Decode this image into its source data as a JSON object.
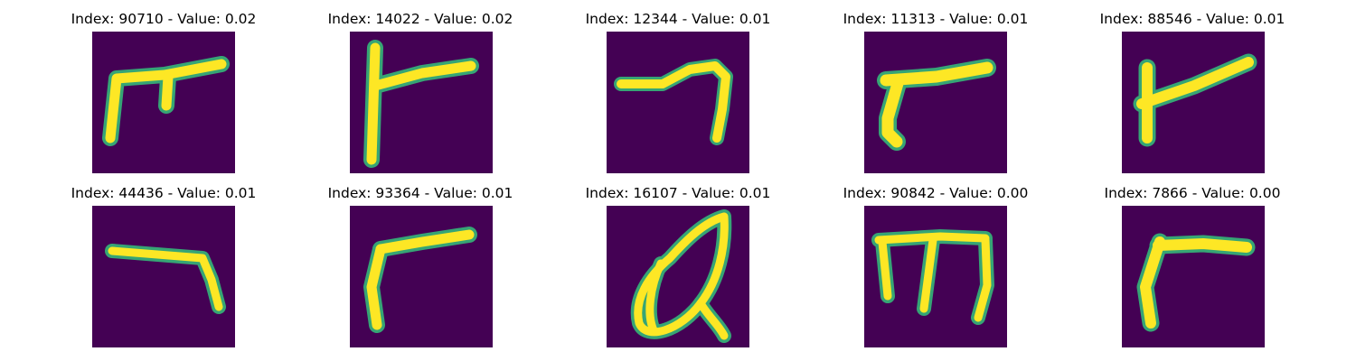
{
  "colors": {
    "background": "#440154",
    "stroke": "#fde725",
    "edge": "#35b779"
  },
  "tiles": [
    {
      "title": "Index: 90710 - Value: 0.02"
    },
    {
      "title": "Index: 14022 - Value: 0.02"
    },
    {
      "title": "Index: 12344 - Value: 0.01"
    },
    {
      "title": "Index: 11313 - Value: 0.01"
    },
    {
      "title": "Index: 88546 - Value: 0.01"
    },
    {
      "title": "Index: 44436 - Value: 0.01"
    },
    {
      "title": "Index: 93364 - Value: 0.01"
    },
    {
      "title": "Index: 16107 - Value: 0.01"
    },
    {
      "title": "Index: 90842 - Value: 0.00"
    },
    {
      "title": "Index: 7866 - Value: 0.00"
    }
  ]
}
